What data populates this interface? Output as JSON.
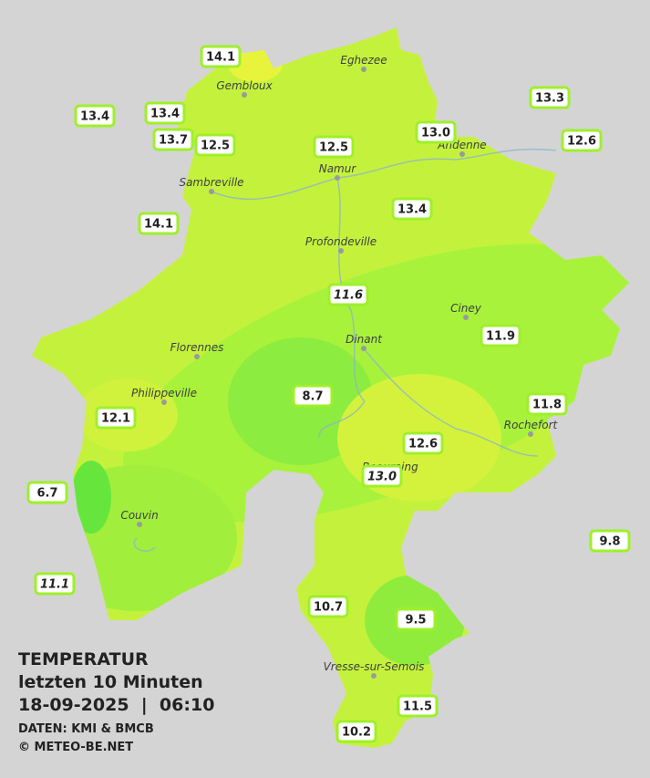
{
  "legend": {
    "title": "TEMPERATUR",
    "subtitle": "letzten 10 Minuten",
    "datetime": "18-09-2025  |  06:10",
    "source": "DATEN: KMI & BMCB",
    "copyright": "© METEO-BE.NET"
  },
  "cities": [
    "Eghezee",
    "Gembloux",
    "Andenne",
    "Namur",
    "Sambreville",
    "Profondeville",
    "Ciney",
    "Dinant",
    "Florennes",
    "Philippeville",
    "Rochefort",
    "Beauraing",
    "Couvin",
    "Vresse-sur-Semois"
  ],
  "stations": [
    {
      "label": "14.1"
    },
    {
      "label": "13.4"
    },
    {
      "label": "13.4"
    },
    {
      "label": "13.7"
    },
    {
      "label": "12.5"
    },
    {
      "label": "12.5"
    },
    {
      "label": "13.0"
    },
    {
      "label": "13.3"
    },
    {
      "label": "12.6"
    },
    {
      "label": "14.1"
    },
    {
      "label": "13.4"
    },
    {
      "label": "11.6",
      "italic": true
    },
    {
      "label": "11.9"
    },
    {
      "label": "8.7"
    },
    {
      "label": "12.1"
    },
    {
      "label": "11.8"
    },
    {
      "label": "12.6"
    },
    {
      "label": "13.0",
      "italic": true
    },
    {
      "label": "6.7"
    },
    {
      "label": "9.8"
    },
    {
      "label": "11.1",
      "italic": true
    },
    {
      "label": "10.7"
    },
    {
      "label": "9.5"
    },
    {
      "label": "11.5"
    },
    {
      "label": "10.2"
    }
  ]
}
